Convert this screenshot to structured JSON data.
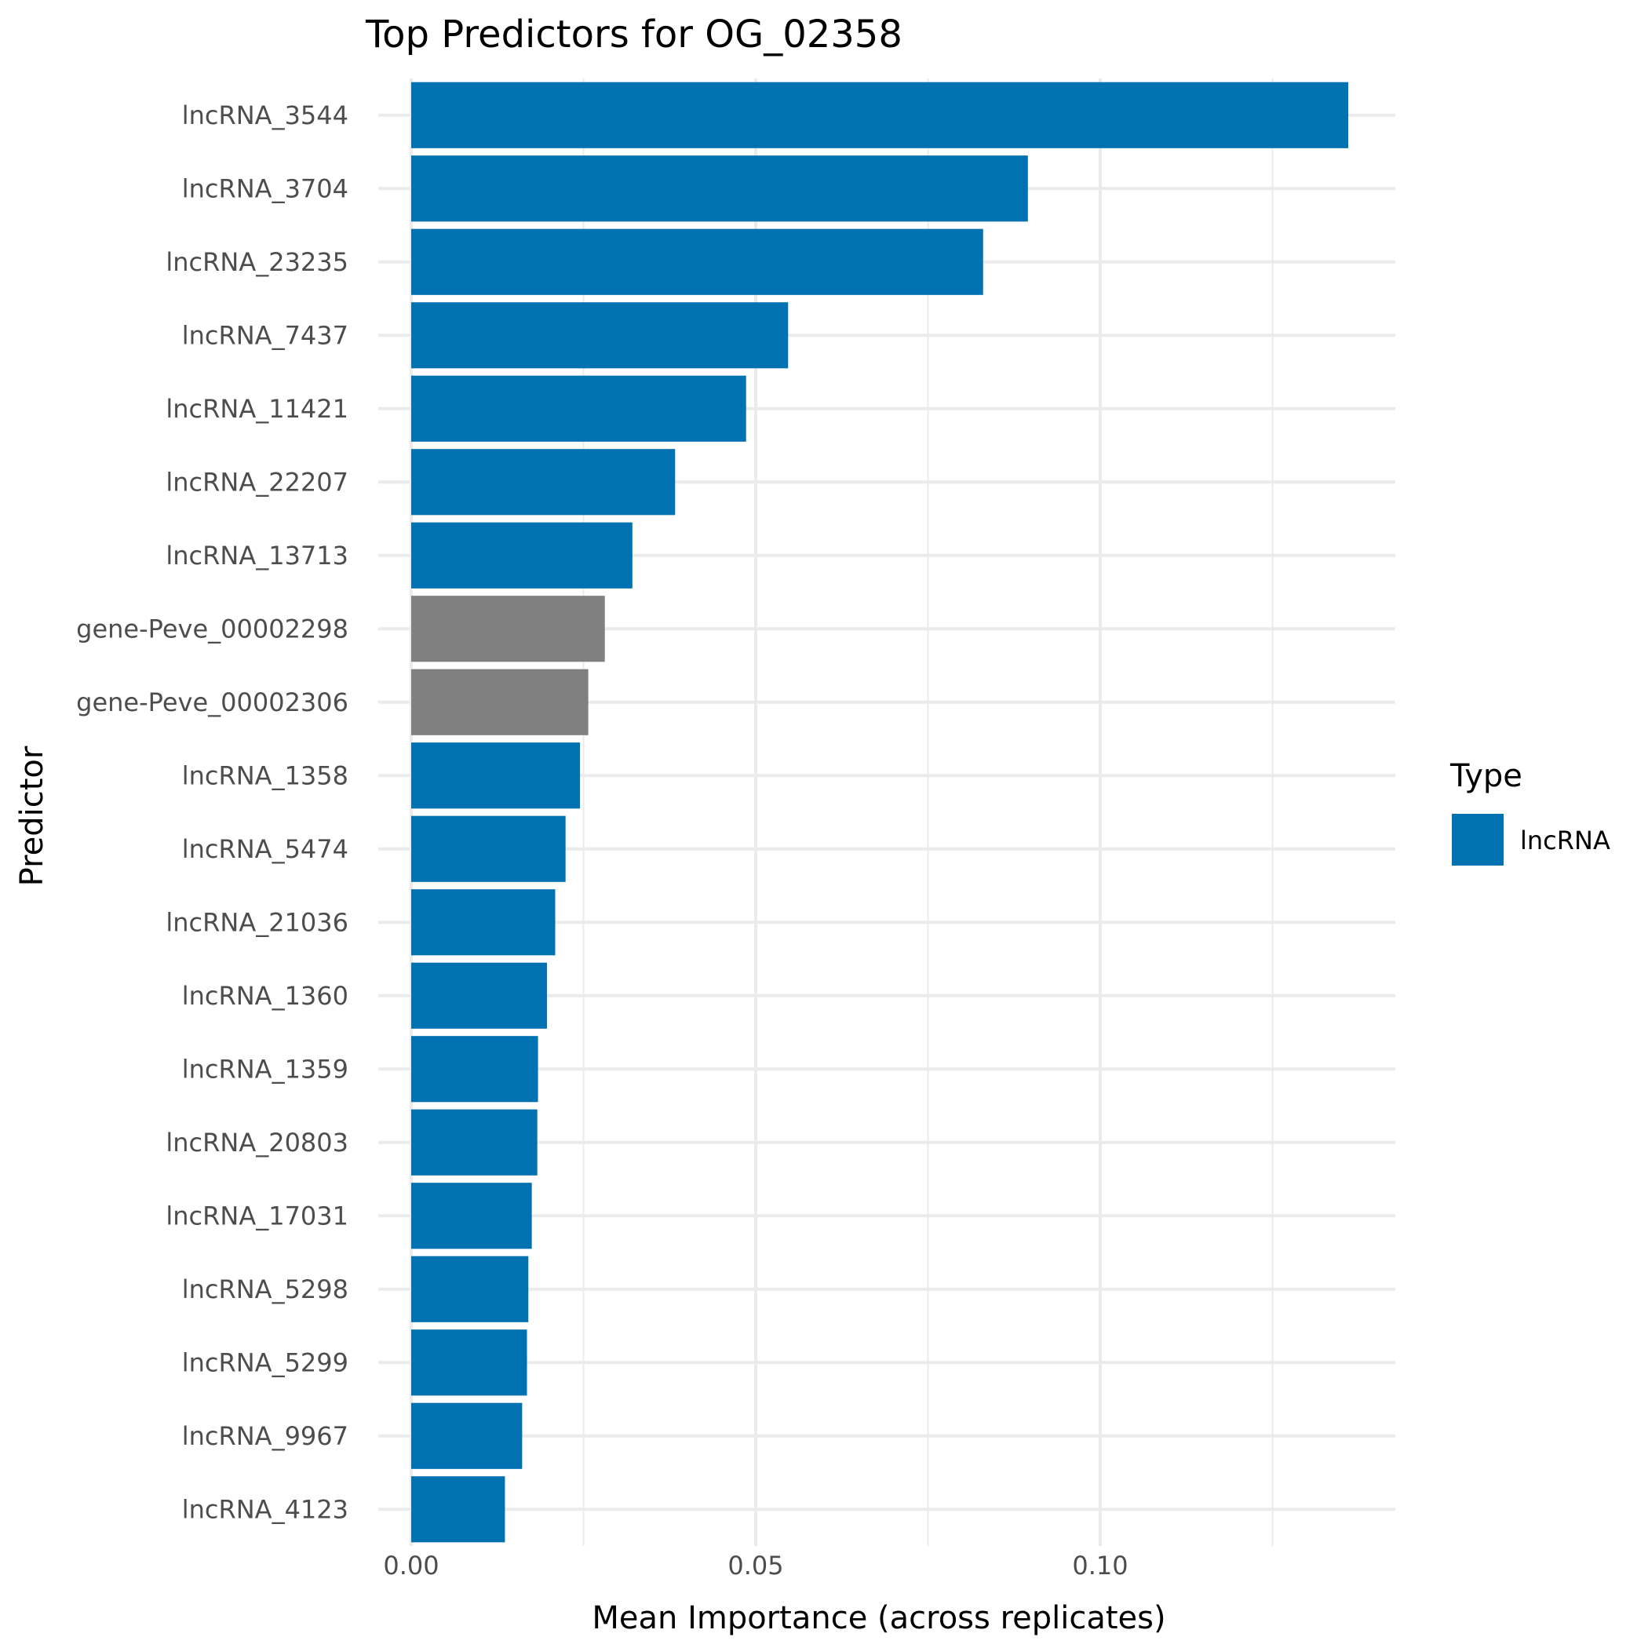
{
  "chart_data": {
    "type": "bar",
    "orientation": "horizontal",
    "title": "Top Predictors for OG_02358",
    "xlabel": "Mean Importance (across replicates)",
    "ylabel": "Predictor",
    "xlim": [
      0,
      0.143
    ],
    "xticks": [
      0.0,
      0.05,
      0.1
    ],
    "xtick_labels": [
      "0.00",
      "0.05",
      "0.10"
    ],
    "grid": true,
    "legend": {
      "title": "Type",
      "placement": "right",
      "entries": [
        {
          "label": "lncRNA",
          "color": "#0072B2"
        }
      ]
    },
    "colors": {
      "lncRNA": "#0072B2",
      "gene": "#808080"
    },
    "categories": [
      "lncRNA_3544",
      "lncRNA_3704",
      "lncRNA_23235",
      "lncRNA_7437",
      "lncRNA_11421",
      "lncRNA_22207",
      "lncRNA_13713",
      "gene-Peve_00002298",
      "gene-Peve_00002306",
      "lncRNA_1358",
      "lncRNA_5474",
      "lncRNA_21036",
      "lncRNA_1360",
      "lncRNA_1359",
      "lncRNA_20803",
      "lncRNA_17031",
      "lncRNA_5298",
      "lncRNA_5299",
      "lncRNA_9967",
      "lncRNA_4123"
    ],
    "values": [
      0.136,
      0.0895,
      0.083,
      0.0547,
      0.0486,
      0.0383,
      0.0321,
      0.0281,
      0.0257,
      0.0245,
      0.0224,
      0.0209,
      0.0197,
      0.0184,
      0.0183,
      0.0175,
      0.017,
      0.0168,
      0.0161,
      0.0136
    ],
    "types": [
      "lncRNA",
      "lncRNA",
      "lncRNA",
      "lncRNA",
      "lncRNA",
      "lncRNA",
      "lncRNA",
      "gene",
      "gene",
      "lncRNA",
      "lncRNA",
      "lncRNA",
      "lncRNA",
      "lncRNA",
      "lncRNA",
      "lncRNA",
      "lncRNA",
      "lncRNA",
      "lncRNA",
      "lncRNA"
    ]
  }
}
